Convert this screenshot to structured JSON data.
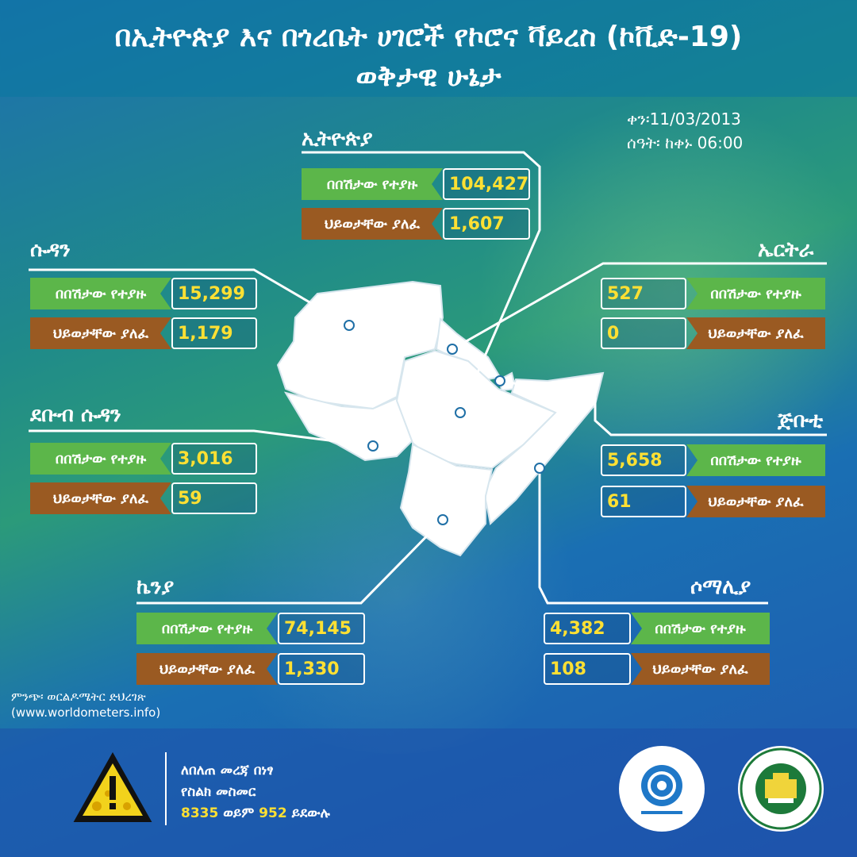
{
  "title": {
    "line1": "በኢትዮጵያ እና በጎረቤት ሀገሮች የኮሮና ቫይረስ (ኮቪድ-19)",
    "line2": "ወቅታዊ ሁኔታ"
  },
  "date": {
    "date_line": "ቀን፡11/03/2013",
    "time_line": "ሰዓት፡ ከቀኑ 06:00"
  },
  "labels": {
    "cases": "በበሽታው የተያዙ",
    "deaths": "ህይወታቸው ያለፈ"
  },
  "countries": {
    "ethiopia": {
      "name": "ኢትዮጵያ",
      "cases": "104,427",
      "deaths": "1,607"
    },
    "sudan": {
      "name": "ሱዳን",
      "cases": "15,299",
      "deaths": "1,179"
    },
    "eritrea": {
      "name": "ኤርትራ",
      "cases": "527",
      "deaths": "0"
    },
    "south_sudan": {
      "name": "ደቡብ ሱዳን",
      "cases": "3,016",
      "deaths": "59"
    },
    "djibouti": {
      "name": "ጅቡቲ",
      "cases": "5,658",
      "deaths": "61"
    },
    "kenya": {
      "name": "ኬንያ",
      "cases": "74,145",
      "deaths": "1,330"
    },
    "somalia": {
      "name": "ሶማሊያ",
      "cases": "4,382",
      "deaths": "108"
    }
  },
  "source": {
    "label": "ምንጭ፡ ወርልዶሜትር ድህረገጽ",
    "url": "(www.worldometers.info)"
  },
  "hotline": {
    "line1": "ለበለጠ መረጃ በነፃ",
    "line2": "የስልክ መስመር",
    "number1": "8335",
    "or": "ወይም",
    "number2": "952",
    "call": "ይደውሉ"
  },
  "colors": {
    "cases_green": "#5cb64a",
    "deaths_brown": "#9a5a22",
    "value_yellow": "#ffe033"
  }
}
